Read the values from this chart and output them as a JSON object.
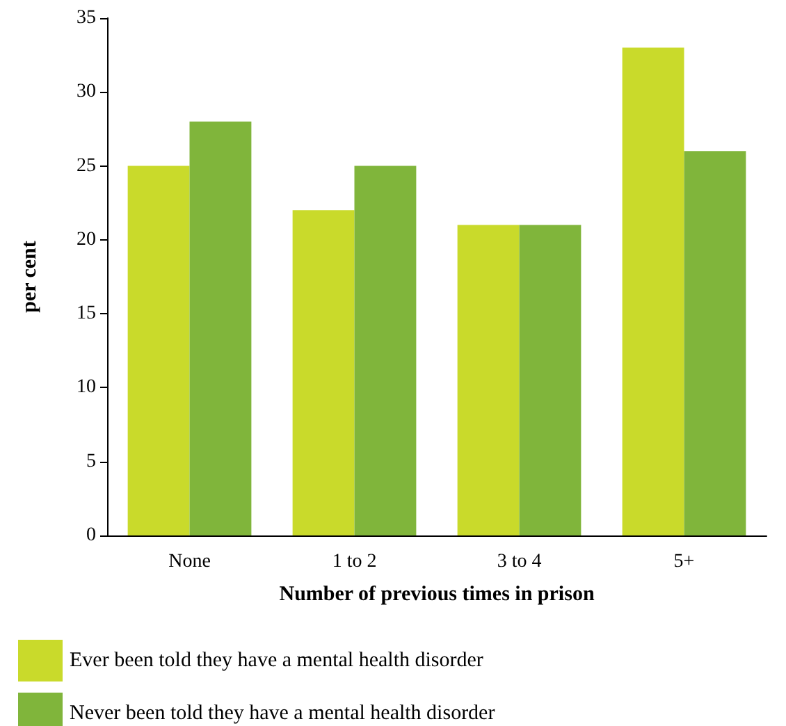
{
  "chart_data": {
    "type": "bar",
    "xlabel": "Number of previous times in prison",
    "ylabel": "per cent",
    "categories": [
      "None",
      "1 to 2",
      "3 to 4",
      "5+"
    ],
    "series": [
      {
        "name": "Ever been told they have a mental health disorder",
        "color": "#c9da2b",
        "values": [
          25,
          22,
          21,
          33
        ]
      },
      {
        "name": "Never been told they have a mental health disorder",
        "color": "#80b53b",
        "values": [
          28,
          25,
          21,
          26
        ]
      }
    ],
    "ylim": [
      0,
      35
    ],
    "yticks": [
      0,
      5,
      10,
      15,
      20,
      25,
      30,
      35
    ],
    "grid": false,
    "legend": "bottom"
  }
}
